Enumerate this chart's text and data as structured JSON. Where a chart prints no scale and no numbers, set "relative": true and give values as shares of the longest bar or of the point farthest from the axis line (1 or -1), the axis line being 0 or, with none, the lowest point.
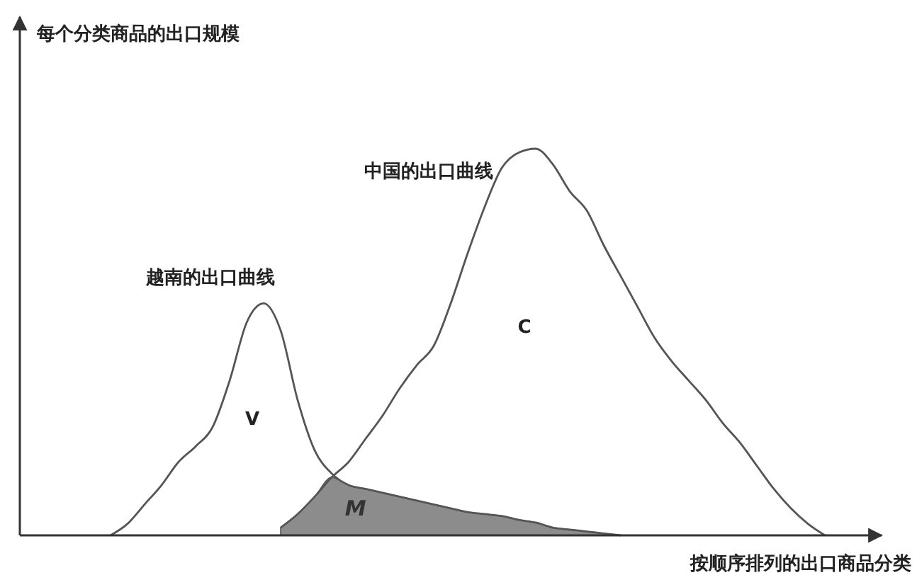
{
  "chart_data": {
    "type": "line",
    "relative": true,
    "xlabel": "按顺序排列的出口商品分类",
    "categories": [
      null,
      null,
      null,
      null,
      null,
      null,
      null,
      null,
      null,
      null,
      null,
      null,
      null,
      null,
      null,
      null,
      null,
      null,
      null,
      null,
      null,
      null,
      null,
      null,
      null,
      null,
      null,
      null,
      null,
      null,
      null,
      null,
      null,
      null,
      null,
      null,
      null,
      null,
      null,
      null,
      null,
      null,
      null
    ],
    "series": [
      {
        "name": "M",
        "type": "area",
        "color": "#8c8c8c",
        "values": [
          null,
          null,
          null,
          null,
          null,
          null,
          null,
          null,
          null,
          null,
          0.02,
          0.055,
          0.1,
          0.15,
          0.13,
          0.12,
          0.11,
          0.1,
          0.09,
          0.08,
          0.07,
          0.06,
          0.055,
          0.05,
          0.04,
          0.033,
          0.02,
          0.015,
          0.01,
          0.005,
          0,
          null,
          null,
          null,
          null,
          null,
          null,
          null,
          null,
          null,
          null,
          null,
          null
        ]
      },
      {
        "name": "越南的出口曲线",
        "color": "#555555",
        "values": [
          0,
          0.03,
          0.08,
          0.13,
          0.19,
          0.23,
          0.28,
          0.4,
          0.55,
          0.6,
          0.53,
          0.35,
          0.22,
          0.16,
          0.13,
          0.12,
          0.11,
          0.1,
          0.09,
          0.08,
          0.07,
          0.06,
          0.055,
          0.05,
          0.04,
          0.033,
          0.02,
          0.015,
          0.01,
          0.005,
          0,
          null,
          null,
          null,
          null,
          null,
          null,
          null,
          null,
          null,
          null,
          null,
          null
        ]
      },
      {
        "name": "中国的出口曲线",
        "color": "#555555",
        "values": [
          null,
          null,
          null,
          null,
          null,
          null,
          null,
          null,
          null,
          null,
          0.02,
          0.055,
          0.1,
          0.15,
          0.19,
          0.25,
          0.31,
          0.38,
          0.44,
          0.49,
          0.6,
          0.73,
          0.85,
          0.95,
          0.99,
          1,
          0.96,
          0.89,
          0.84,
          0.75,
          0.67,
          0.59,
          0.51,
          0.45,
          0.4,
          0.35,
          0.29,
          0.24,
          0.18,
          0.12,
          0.07,
          0.03,
          0
        ]
      }
    ],
    "annotations": [
      "每个分类商品的出口规模",
      "V",
      "C"
    ]
  }
}
